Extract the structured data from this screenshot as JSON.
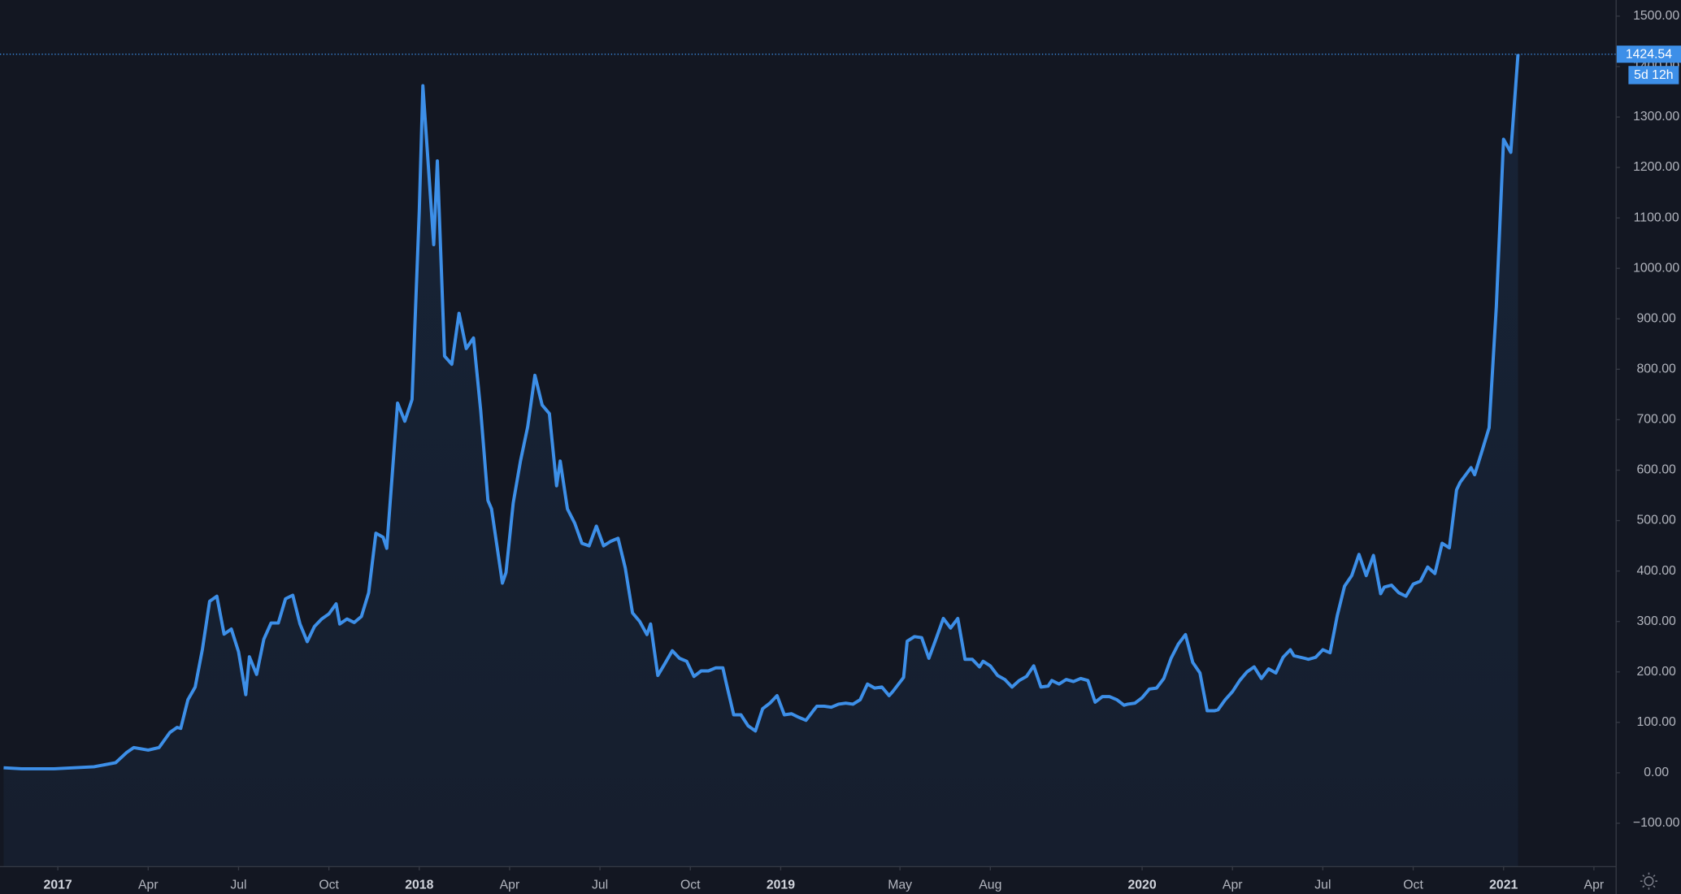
{
  "chart_data": {
    "type": "area",
    "color": "#3d8fe8",
    "countdown_label": "5d 12h",
    "xlim": [
      2016.84,
      2021.31
    ],
    "ylim": [
      -185,
      1532
    ],
    "xticks": [
      {
        "value": 2017,
        "label": "2017"
      },
      {
        "value": 2017.25,
        "label": "Apr"
      },
      {
        "value": 2017.5,
        "label": "Jul"
      },
      {
        "value": 2017.75,
        "label": "Oct"
      },
      {
        "value": 2018,
        "label": "2018"
      },
      {
        "value": 2018.25,
        "label": "Apr"
      },
      {
        "value": 2018.5,
        "label": "Jul"
      },
      {
        "value": 2018.75,
        "label": "Oct"
      },
      {
        "value": 2019,
        "label": "2019"
      },
      {
        "value": 2019.33,
        "label": "May"
      },
      {
        "value": 2019.58,
        "label": "Aug"
      },
      {
        "value": 2020,
        "label": "2020"
      },
      {
        "value": 2020.25,
        "label": "Apr"
      },
      {
        "value": 2020.5,
        "label": "Jul"
      },
      {
        "value": 2020.75,
        "label": "Oct"
      },
      {
        "value": 2021,
        "label": "2021"
      },
      {
        "value": 2021.25,
        "label": "Apr"
      }
    ],
    "yticks": [
      {
        "value": 1500,
        "label": "1500.00"
      },
      {
        "value": 1400,
        "label": "1400.00"
      },
      {
        "value": 1300,
        "label": "1300.00"
      },
      {
        "value": 1200,
        "label": "1200.00"
      },
      {
        "value": 1100,
        "label": "1100.00"
      },
      {
        "value": 1000,
        "label": "1000.00"
      },
      {
        "value": 900,
        "label": "900.00"
      },
      {
        "value": 800,
        "label": "800.00"
      },
      {
        "value": 700,
        "label": "700.00"
      },
      {
        "value": 600,
        "label": "600.00"
      },
      {
        "value": 500,
        "label": "500.00"
      },
      {
        "value": 400,
        "label": "400.00"
      },
      {
        "value": 300,
        "label": "300.00"
      },
      {
        "value": 200,
        "label": "200.00"
      },
      {
        "value": 100,
        "label": "100.00"
      },
      {
        "value": 0,
        "label": "0.00"
      },
      {
        "value": -100,
        "label": "−100.00"
      }
    ],
    "x": [
      2016.85,
      2016.9,
      2016.99,
      2017.1,
      2017.16,
      2017.19,
      2017.21,
      2017.25,
      2017.28,
      2017.31,
      2017.33,
      2017.34,
      2017.36,
      2017.38,
      2017.4,
      2017.42,
      2017.44,
      2017.46,
      2017.48,
      2017.5,
      2017.52,
      2017.53,
      2017.55,
      2017.57,
      2017.59,
      2017.61,
      2017.63,
      2017.65,
      2017.67,
      2017.69,
      2017.71,
      2017.73,
      2017.75,
      2017.77,
      2017.78,
      2017.8,
      2017.82,
      2017.84,
      2017.86,
      2017.88,
      2017.9,
      2017.91,
      2017.94,
      2017.96,
      2017.98,
      2018.0,
      2018.01,
      2018.04,
      2018.05,
      2018.07,
      2018.09,
      2018.11,
      2018.13,
      2018.15,
      2018.17,
      2018.19,
      2018.2,
      2018.23,
      2018.24,
      2018.26,
      2018.28,
      2018.3,
      2018.32,
      2018.34,
      2018.36,
      2018.38,
      2018.39,
      2018.41,
      2018.43,
      2018.45,
      2018.47,
      2018.49,
      2018.51,
      2018.53,
      2018.55,
      2018.57,
      2018.59,
      2018.61,
      2018.63,
      2018.64,
      2018.66,
      2018.68,
      2018.7,
      2018.72,
      2018.74,
      2018.76,
      2018.78,
      2018.8,
      2018.82,
      2018.84,
      2018.85,
      2018.87,
      2018.89,
      2018.91,
      2018.93,
      2018.95,
      2018.97,
      2018.99,
      2019.01,
      2019.03,
      2019.05,
      2019.07,
      2019.09,
      2019.1,
      2019.12,
      2019.14,
      2019.16,
      2019.18,
      2019.2,
      2019.22,
      2019.24,
      2019.26,
      2019.28,
      2019.3,
      2019.31,
      2019.34,
      2019.35,
      2019.37,
      2019.39,
      2019.41,
      2019.43,
      2019.45,
      2019.47,
      2019.49,
      2019.51,
      2019.53,
      2019.55,
      2019.56,
      2019.58,
      2019.6,
      2019.62,
      2019.64,
      2019.66,
      2019.68,
      2019.7,
      2019.72,
      2019.74,
      2019.75,
      2019.77,
      2019.79,
      2019.81,
      2019.83,
      2019.85,
      2019.87,
      2019.89,
      2019.91,
      2019.93,
      2019.95,
      2019.96,
      2019.98,
      2020.0,
      2020.02,
      2020.04,
      2020.06,
      2020.08,
      2020.1,
      2020.12,
      2020.14,
      2020.16,
      2020.18,
      2020.2,
      2020.21,
      2020.23,
      2020.25,
      2020.27,
      2020.29,
      2020.31,
      2020.33,
      2020.35,
      2020.37,
      2020.39,
      2020.41,
      2020.42,
      2020.45,
      2020.46,
      2020.48,
      2020.5,
      2020.52,
      2020.54,
      2020.56,
      2020.58,
      2020.6,
      2020.62,
      2020.64,
      2020.66,
      2020.67,
      2020.69,
      2020.71,
      2020.73,
      2020.75,
      2020.77,
      2020.79,
      2020.81,
      2020.83,
      2020.85,
      2020.87,
      2020.88,
      2020.91,
      2020.92,
      2020.94,
      2020.96,
      2020.98,
      2021.0,
      2021.02,
      2021.04
    ],
    "values": [
      10,
      8,
      8,
      12,
      20,
      40,
      50,
      45,
      50,
      80,
      90,
      88,
      145,
      170,
      245,
      340,
      350,
      275,
      285,
      240,
      155,
      230,
      195,
      265,
      297,
      297,
      345,
      352,
      295,
      260,
      290,
      305,
      315,
      335,
      295,
      305,
      298,
      310,
      357,
      475,
      467,
      445,
      733,
      697,
      740,
      1113,
      1362,
      1047,
      1213,
      826,
      810,
      911,
      841,
      862,
      718,
      540,
      523,
      376,
      397,
      535,
      618,
      686,
      788,
      729,
      712,
      569,
      618,
      523,
      495,
      455,
      450,
      489,
      450,
      459,
      465,
      406,
      317,
      300,
      274,
      295,
      193,
      217,
      242,
      227,
      221,
      191,
      202,
      202,
      208,
      208,
      176,
      115,
      115,
      93,
      83,
      127,
      138,
      153,
      115,
      117,
      110,
      104,
      123,
      132,
      132,
      130,
      136,
      138,
      136,
      145,
      176,
      168,
      170,
      153,
      161,
      189,
      261,
      270,
      268,
      227,
      266,
      306,
      287,
      306,
      225,
      225,
      210,
      221,
      212,
      193,
      185,
      170,
      183,
      191,
      212,
      170,
      172,
      183,
      176,
      185,
      181,
      187,
      183,
      140,
      151,
      151,
      145,
      134,
      136,
      138,
      149,
      166,
      168,
      187,
      227,
      255,
      274,
      219,
      198,
      123,
      123,
      125,
      145,
      161,
      183,
      200,
      210,
      187,
      206,
      198,
      229,
      244,
      232,
      227,
      225,
      229,
      244,
      238,
      312,
      370,
      391,
      433,
      391,
      431,
      355,
      368,
      372,
      357,
      350,
      374,
      380,
      408,
      395,
      455,
      446,
      561,
      576,
      605,
      591,
      637,
      684,
      924,
      1256,
      1230,
      1424.54
    ]
  }
}
